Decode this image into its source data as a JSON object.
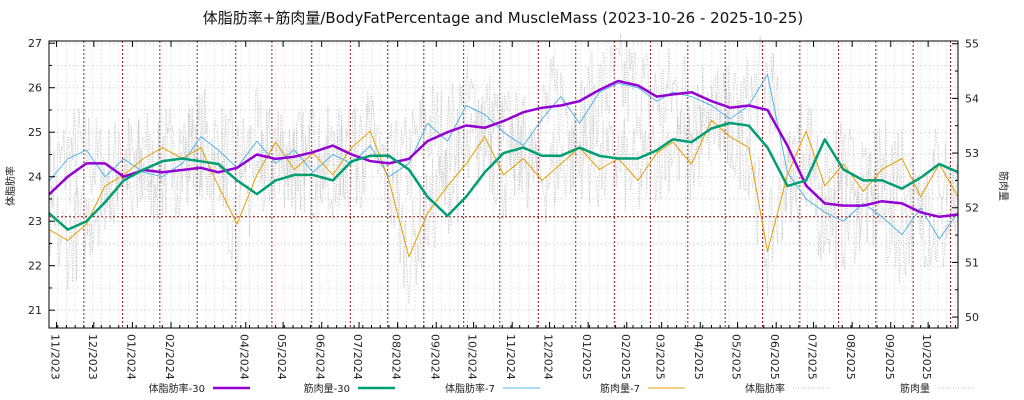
{
  "chart_data": {
    "type": "line",
    "title": "体脂肪率+筋肉量/BodyFatPercentage and MuscleMass (2023-10-26 - 2025-10-25)",
    "ylabel": "体脂肪率",
    "y2label": "筋肉量",
    "xlim": [
      "2023-10-26",
      "2025-10-25"
    ],
    "ylim": [
      20.6,
      27.05
    ],
    "y2lim": [
      49.8,
      55.05
    ],
    "yticks": [
      21,
      22,
      23,
      24,
      25,
      26,
      27
    ],
    "y2ticks": [
      50,
      51,
      52,
      53,
      54,
      55
    ],
    "xticks": [
      {
        "date": "2023-11-01",
        "label": "11/2023"
      },
      {
        "date": "2023-12-01",
        "label": "12/2023"
      },
      {
        "date": "2024-01-01",
        "label": "01/2024"
      },
      {
        "date": "2024-02-01",
        "label": "02/2024"
      },
      {
        "date": "2024-04-01",
        "label": "04/2024"
      },
      {
        "date": "2024-05-01",
        "label": "05/2024"
      },
      {
        "date": "2024-06-01",
        "label": "06/2024"
      },
      {
        "date": "2024-07-01",
        "label": "07/2024"
      },
      {
        "date": "2024-08-01",
        "label": "08/2024"
      },
      {
        "date": "2024-09-01",
        "label": "09/2024"
      },
      {
        "date": "2024-10-01",
        "label": "10/2024"
      },
      {
        "date": "2024-11-01",
        "label": "11/2024"
      },
      {
        "date": "2024-12-01",
        "label": "12/2024"
      },
      {
        "date": "2025-01-01",
        "label": "01/2025"
      },
      {
        "date": "2025-02-01",
        "label": "02/2025"
      },
      {
        "date": "2025-03-01",
        "label": "03/2025"
      },
      {
        "date": "2025-04-01",
        "label": "04/2025"
      },
      {
        "date": "2025-05-01",
        "label": "05/2025"
      },
      {
        "date": "2025-06-01",
        "label": "06/2025"
      },
      {
        "date": "2025-07-01",
        "label": "07/2025"
      },
      {
        "date": "2025-08-01",
        "label": "08/2025"
      },
      {
        "date": "2025-09-01",
        "label": "09/2025"
      },
      {
        "date": "2025-10-01",
        "label": "10/2025"
      }
    ],
    "month_separators": [
      "2023-11-23",
      "2023-12-24",
      "2024-01-23",
      "2024-02-22",
      "2024-03-24",
      "2024-04-22",
      "2024-05-24",
      "2024-06-24",
      "2024-07-24",
      "2024-08-22",
      "2024-09-23",
      "2024-10-22",
      "2024-11-22",
      "2024-12-22",
      "2025-01-22",
      "2025-02-20",
      "2025-03-22",
      "2025-04-21",
      "2025-05-21",
      "2025-06-20",
      "2025-07-21",
      "2025-08-20",
      "2025-09-19",
      "2025-10-19"
    ],
    "reference_line": {
      "axis": "y",
      "value": 23.1,
      "color": "#8b0000"
    },
    "grid": true,
    "legend_position": "bottom",
    "series": [
      {
        "name": "体脂肪率-30",
        "axis": "y",
        "color": "#9400d3",
        "width": "thick",
        "x": [
          "2023-10-26",
          "2023-11-10",
          "2023-11-25",
          "2023-12-10",
          "2023-12-25",
          "2024-01-10",
          "2024-01-25",
          "2024-02-10",
          "2024-02-25",
          "2024-03-10",
          "2024-03-25",
          "2024-04-10",
          "2024-04-25",
          "2024-05-10",
          "2024-05-25",
          "2024-06-10",
          "2024-06-25",
          "2024-07-10",
          "2024-07-25",
          "2024-08-10",
          "2024-08-25",
          "2024-09-10",
          "2024-09-25",
          "2024-10-10",
          "2024-10-25",
          "2024-11-10",
          "2024-11-25",
          "2024-12-10",
          "2024-12-25",
          "2025-01-10",
          "2025-01-25",
          "2025-02-10",
          "2025-02-25",
          "2025-03-10",
          "2025-03-25",
          "2025-04-10",
          "2025-04-25",
          "2025-05-10",
          "2025-05-25",
          "2025-06-10",
          "2025-06-25",
          "2025-07-10",
          "2025-07-25",
          "2025-08-10",
          "2025-08-25",
          "2025-09-10",
          "2025-09-25",
          "2025-10-10",
          "2025-10-25"
        ],
        "values": [
          23.6,
          24.0,
          24.3,
          24.3,
          24.0,
          24.15,
          24.1,
          24.15,
          24.2,
          24.1,
          24.2,
          24.5,
          24.4,
          24.45,
          24.55,
          24.7,
          24.5,
          24.35,
          24.3,
          24.4,
          24.8,
          25.0,
          25.15,
          25.1,
          25.25,
          25.45,
          25.55,
          25.6,
          25.7,
          25.95,
          26.15,
          26.05,
          25.8,
          25.85,
          25.9,
          25.7,
          25.55,
          25.6,
          25.5,
          24.7,
          23.8,
          23.4,
          23.35,
          23.35,
          23.45,
          23.4,
          23.2,
          23.1,
          23.15
        ]
      },
      {
        "name": "筋肉量-30",
        "axis": "y2",
        "color": "#009e73",
        "width": "thick",
        "x": [
          "2023-10-26",
          "2023-11-10",
          "2023-11-25",
          "2023-12-10",
          "2023-12-25",
          "2024-01-10",
          "2024-01-25",
          "2024-02-10",
          "2024-02-25",
          "2024-03-10",
          "2024-03-25",
          "2024-04-10",
          "2024-04-25",
          "2024-05-10",
          "2024-05-25",
          "2024-06-10",
          "2024-06-25",
          "2024-07-10",
          "2024-07-25",
          "2024-08-10",
          "2024-08-25",
          "2024-09-10",
          "2024-09-25",
          "2024-10-10",
          "2024-10-25",
          "2024-11-10",
          "2024-11-25",
          "2024-12-10",
          "2024-12-25",
          "2025-01-10",
          "2025-01-25",
          "2025-02-10",
          "2025-02-25",
          "2025-03-10",
          "2025-03-25",
          "2025-04-10",
          "2025-04-25",
          "2025-05-10",
          "2025-05-25",
          "2025-06-10",
          "2025-06-25",
          "2025-07-10",
          "2025-07-25",
          "2025-08-10",
          "2025-08-25",
          "2025-09-10",
          "2025-09-25",
          "2025-10-10",
          "2025-10-25"
        ],
        "values": [
          51.9,
          51.6,
          51.75,
          52.1,
          52.5,
          52.7,
          52.85,
          52.9,
          52.85,
          52.8,
          52.5,
          52.25,
          52.5,
          52.6,
          52.6,
          52.5,
          52.85,
          52.95,
          52.95,
          52.7,
          52.2,
          51.85,
          52.2,
          52.65,
          53.0,
          53.1,
          52.95,
          52.95,
          53.1,
          52.95,
          52.9,
          52.9,
          53.05,
          53.25,
          53.2,
          53.45,
          53.55,
          53.5,
          53.1,
          52.4,
          52.5,
          53.25,
          52.7,
          52.5,
          52.5,
          52.35,
          52.55,
          52.8,
          52.65
        ]
      },
      {
        "name": "体脂肪率-7",
        "axis": "y",
        "color": "#56b4e9",
        "width": "thin",
        "x": [
          "2023-10-26",
          "2023-11-10",
          "2023-11-25",
          "2023-12-10",
          "2023-12-25",
          "2024-01-10",
          "2024-01-25",
          "2024-02-10",
          "2024-02-25",
          "2024-03-10",
          "2024-03-25",
          "2024-04-10",
          "2024-04-25",
          "2024-05-10",
          "2024-05-25",
          "2024-06-10",
          "2024-06-25",
          "2024-07-10",
          "2024-07-25",
          "2024-08-10",
          "2024-08-25",
          "2024-09-10",
          "2024-09-25",
          "2024-10-10",
          "2024-10-25",
          "2024-11-10",
          "2024-11-25",
          "2024-12-10",
          "2024-12-25",
          "2025-01-10",
          "2025-01-25",
          "2025-02-10",
          "2025-02-25",
          "2025-03-10",
          "2025-03-25",
          "2025-04-10",
          "2025-04-25",
          "2025-05-10",
          "2025-05-25",
          "2025-06-10",
          "2025-06-25",
          "2025-07-10",
          "2025-07-25",
          "2025-08-10",
          "2025-08-25",
          "2025-09-10",
          "2025-09-25",
          "2025-10-10",
          "2025-10-25"
        ],
        "values": [
          23.9,
          24.4,
          24.6,
          24.0,
          24.4,
          24.1,
          24.0,
          24.3,
          24.9,
          24.6,
          24.2,
          24.8,
          24.3,
          24.6,
          24.1,
          24.5,
          24.3,
          24.7,
          24.0,
          24.3,
          25.2,
          24.8,
          25.6,
          25.4,
          25.0,
          24.7,
          25.3,
          25.8,
          25.2,
          25.9,
          26.1,
          26.0,
          25.7,
          25.9,
          25.8,
          25.6,
          25.3,
          25.6,
          26.3,
          24.1,
          23.5,
          23.2,
          23.0,
          23.4,
          23.1,
          22.7,
          23.3,
          22.6,
          23.2
        ]
      },
      {
        "name": "筋肉量-7",
        "axis": "y2",
        "color": "#e69f00",
        "width": "thin",
        "x": [
          "2023-10-26",
          "2023-11-10",
          "2023-11-25",
          "2023-12-10",
          "2023-12-25",
          "2024-01-10",
          "2024-01-25",
          "2024-02-10",
          "2024-02-25",
          "2024-03-10",
          "2024-03-25",
          "2024-04-10",
          "2024-04-25",
          "2024-05-10",
          "2024-05-25",
          "2024-06-10",
          "2024-06-25",
          "2024-07-10",
          "2024-07-25",
          "2024-08-10",
          "2024-08-25",
          "2024-09-10",
          "2024-09-25",
          "2024-10-10",
          "2024-10-25",
          "2024-11-10",
          "2024-11-25",
          "2024-12-10",
          "2024-12-25",
          "2025-01-10",
          "2025-01-25",
          "2025-02-10",
          "2025-02-25",
          "2025-03-10",
          "2025-03-25",
          "2025-04-10",
          "2025-04-25",
          "2025-05-10",
          "2025-05-25",
          "2025-06-10",
          "2025-06-25",
          "2025-07-10",
          "2025-07-25",
          "2025-08-10",
          "2025-08-25",
          "2025-09-10",
          "2025-09-25",
          "2025-10-10",
          "2025-10-25"
        ],
        "values": [
          51.6,
          51.4,
          51.7,
          52.4,
          52.6,
          52.9,
          53.1,
          52.9,
          53.1,
          52.4,
          51.7,
          52.6,
          53.2,
          52.7,
          53.0,
          52.6,
          53.1,
          53.4,
          52.5,
          51.1,
          51.9,
          52.4,
          52.8,
          53.3,
          52.6,
          52.9,
          52.5,
          52.8,
          53.1,
          52.7,
          52.9,
          52.5,
          53.0,
          53.2,
          52.8,
          53.6,
          53.3,
          53.1,
          51.2,
          52.6,
          53.4,
          52.4,
          52.8,
          52.3,
          52.7,
          52.9,
          52.2,
          52.8,
          52.2
        ]
      },
      {
        "name": "体脂肪率",
        "axis": "y",
        "color": "#c0c0c0",
        "width": "dotted",
        "note": "daily raw values (noisy, roughly ±1.5 around 7-day average)"
      },
      {
        "name": "筋肉量",
        "axis": "y2",
        "color": "#c0c0c0",
        "width": "dotted",
        "note": "daily raw values (noisy)"
      }
    ]
  }
}
